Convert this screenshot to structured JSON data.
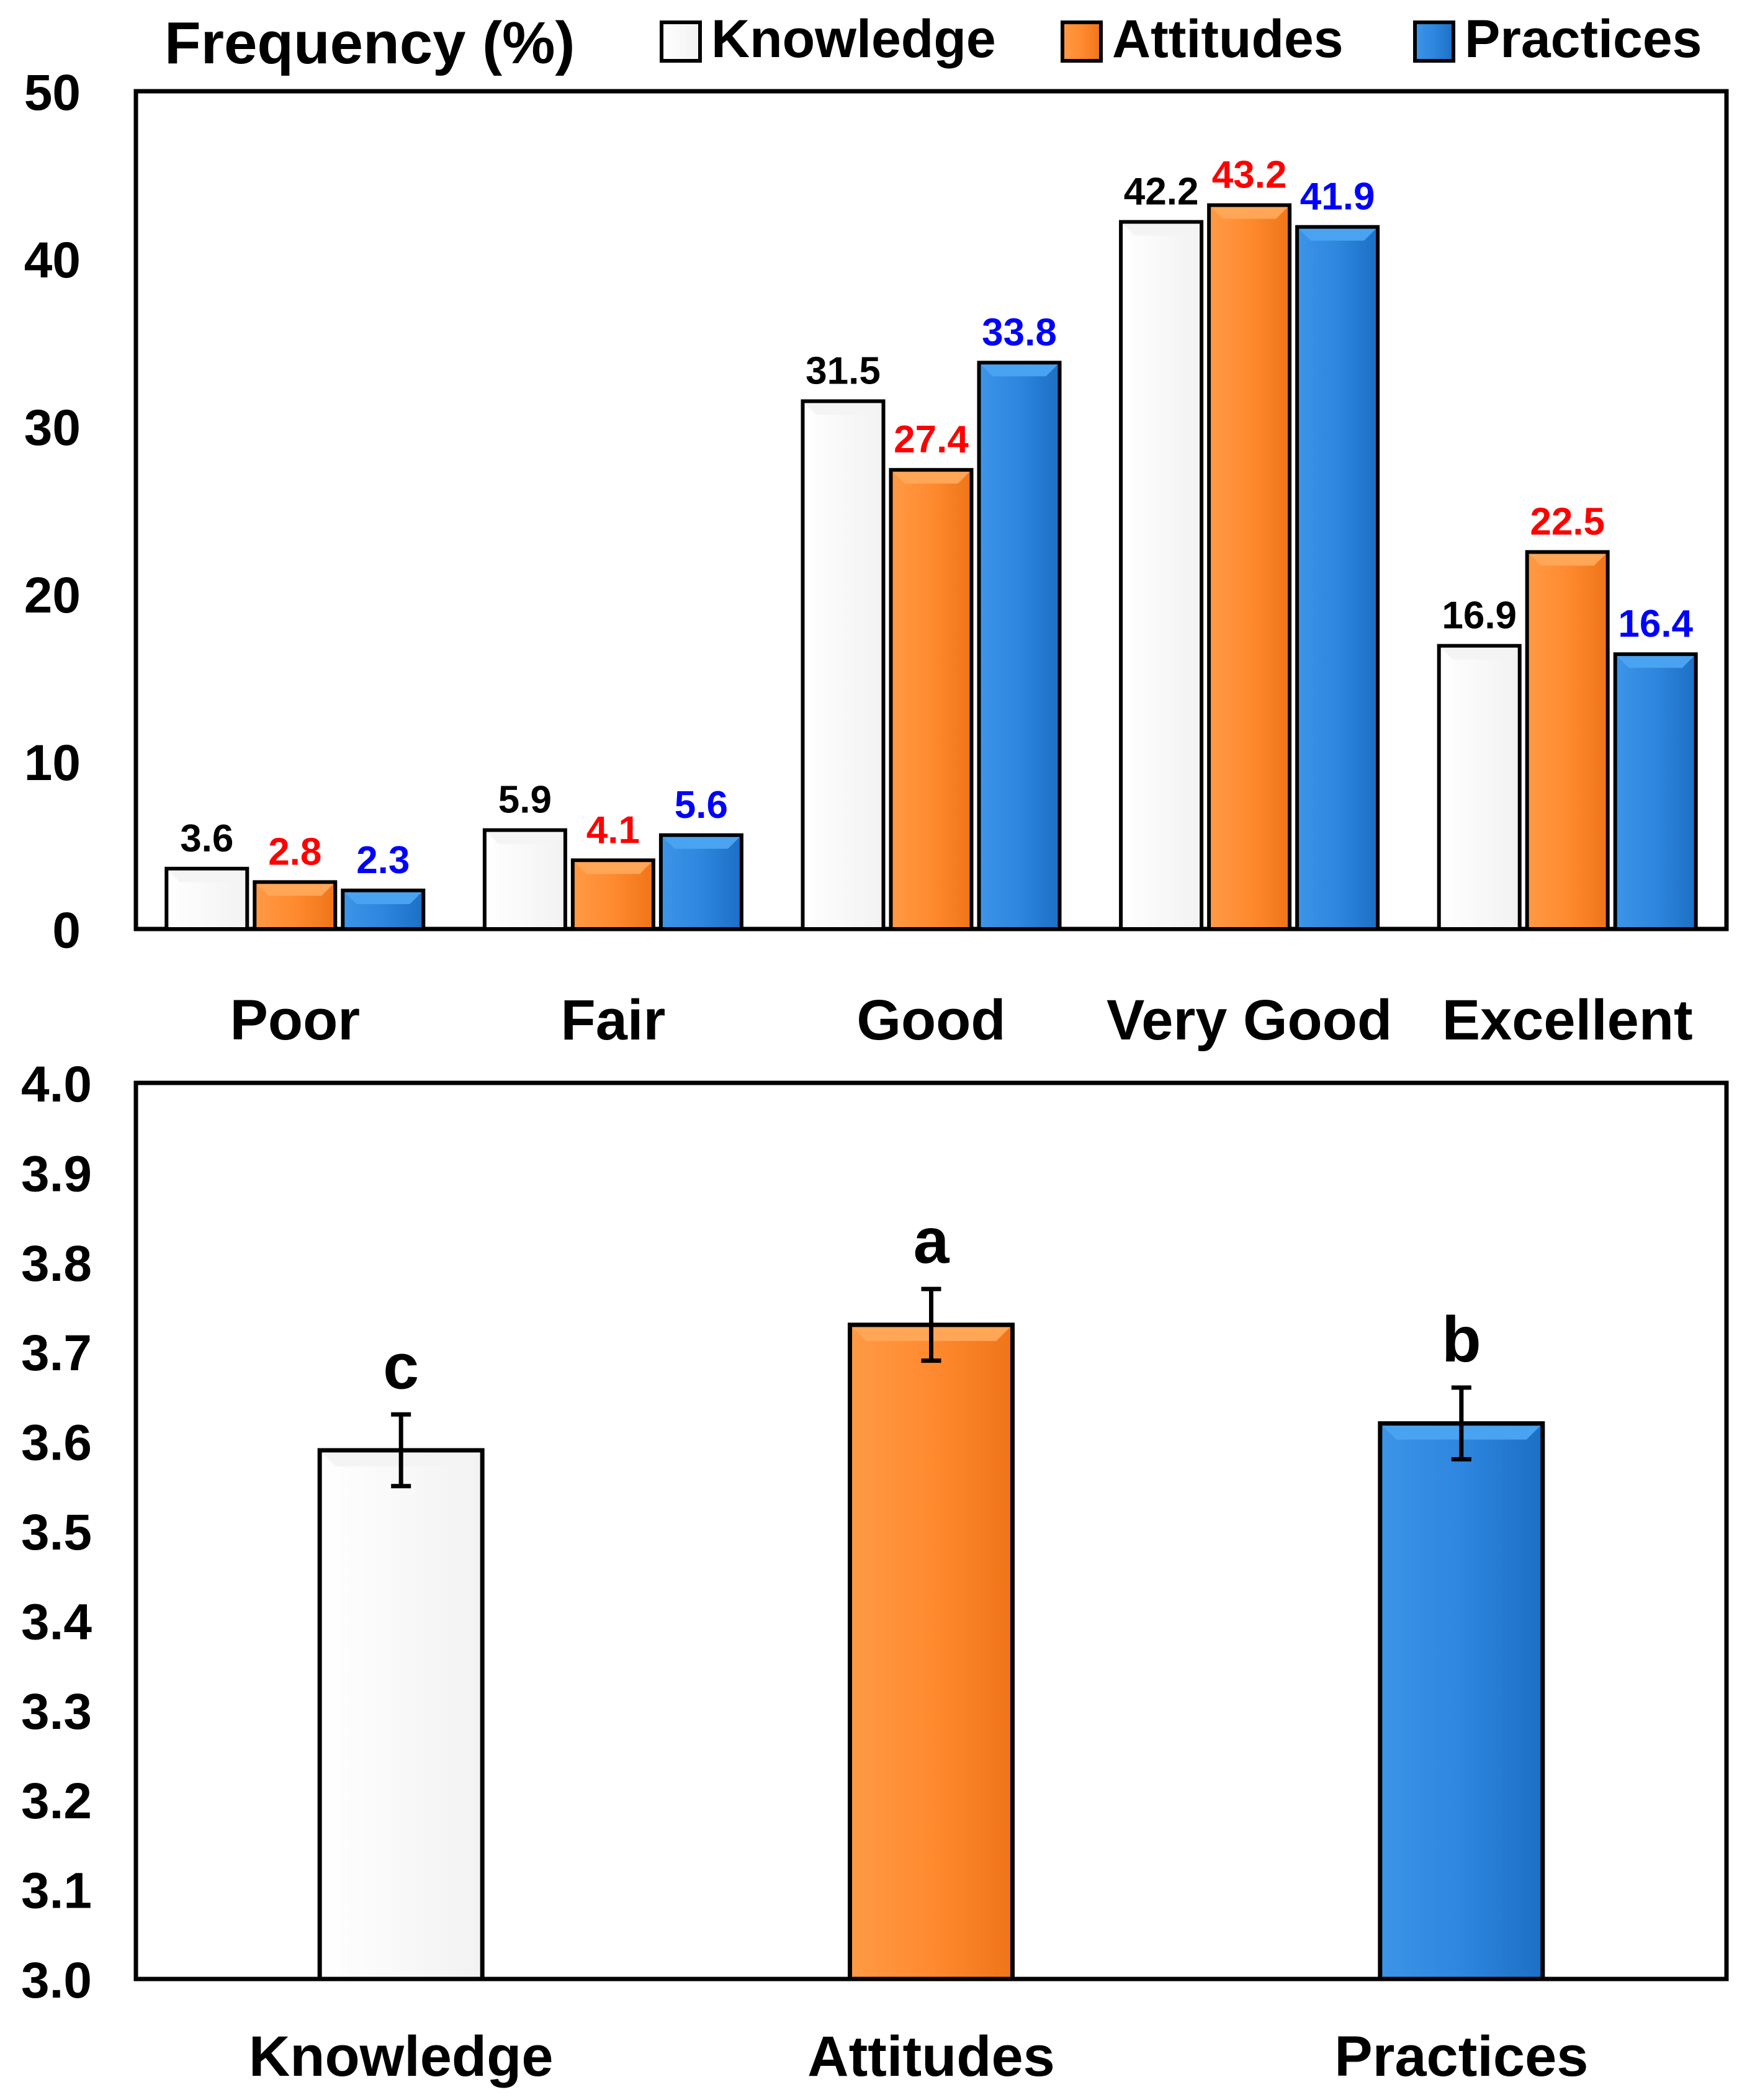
{
  "colors": {
    "knowledge": "#ffffff",
    "attitudes": "#ff8a2f",
    "practices": "#2e86de",
    "attitudes_label": "#ff0000",
    "practices_label": "#0000ff",
    "axis": "#000000"
  },
  "chart_data": [
    {
      "type": "bar",
      "title": "Frequency (%)",
      "categories": [
        "Poor",
        "Fair",
        "Good",
        "Very Good",
        "Excellent"
      ],
      "series": [
        {
          "name": "Knowledge",
          "values": [
            3.6,
            5.9,
            31.5,
            42.2,
            16.9
          ],
          "labels": [
            "3.6",
            "5.9",
            "31.5",
            "42.2",
            "16.9"
          ]
        },
        {
          "name": "Attitudes",
          "values": [
            2.8,
            4.1,
            27.4,
            43.2,
            22.5
          ],
          "labels": [
            "2.8",
            "4.1",
            "27.4",
            "43.2",
            "22.5"
          ]
        },
        {
          "name": "Practices",
          "values": [
            2.3,
            5.6,
            33.8,
            41.9,
            16.4
          ],
          "labels": [
            "2.3",
            "5.6",
            "33.8",
            "41.9",
            "16.4"
          ]
        }
      ],
      "ylim": [
        0,
        50
      ],
      "yticks": [
        0,
        10,
        20,
        30,
        40,
        50
      ],
      "ytick_labels": [
        "0",
        "10",
        "20",
        "30",
        "40",
        "50"
      ],
      "legend": "top-right"
    },
    {
      "type": "bar",
      "categories": [
        "Knowledge",
        "Attitudes",
        "Practices"
      ],
      "values": [
        3.59,
        3.73,
        3.62
      ],
      "errors": [
        0.04,
        0.04,
        0.04
      ],
      "significance": [
        "c",
        "a",
        "b"
      ],
      "ylim": [
        3.0,
        4.0
      ],
      "yticks": [
        3.0,
        3.1,
        3.2,
        3.3,
        3.4,
        3.5,
        3.6,
        3.7,
        3.8,
        3.9,
        4.0
      ],
      "ytick_labels": [
        "3.0",
        "3.1",
        "3.2",
        "3.3",
        "3.4",
        "3.5",
        "3.6",
        "3.7",
        "3.8",
        "3.9",
        "4.0"
      ]
    }
  ]
}
